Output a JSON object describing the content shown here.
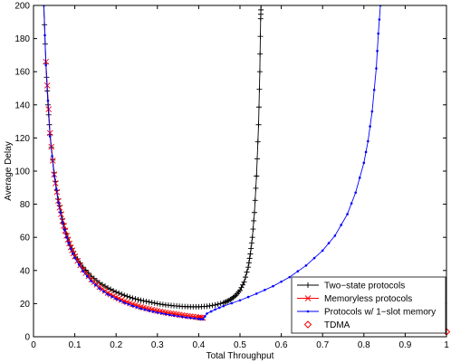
{
  "chart_data": {
    "type": "line",
    "title": "",
    "xlabel": "Total Throughput",
    "ylabel": "Average Delay",
    "xlim": [
      0,
      1
    ],
    "ylim": [
      0,
      200
    ],
    "xticks": [
      "0",
      "0.1",
      "0.2",
      "0.3",
      "0.4",
      "0.5",
      "0.6",
      "0.7",
      "0.8",
      "0.9",
      "1"
    ],
    "yticks": [
      "0",
      "20",
      "40",
      "60",
      "80",
      "100",
      "120",
      "140",
      "160",
      "180",
      "200"
    ],
    "grid": false,
    "legend_position": "bottom-right",
    "series": [
      {
        "name": "Two−state protocols",
        "color": "#000000",
        "marker": "plus",
        "points": [
          [
            0.025,
            200
          ],
          [
            0.03,
            165
          ],
          [
            0.035,
            140
          ],
          [
            0.04,
            122
          ],
          [
            0.05,
            99
          ],
          [
            0.06,
            83
          ],
          [
            0.07,
            71
          ],
          [
            0.08,
            62
          ],
          [
            0.09,
            55
          ],
          [
            0.1,
            49.5
          ],
          [
            0.12,
            42
          ],
          [
            0.14,
            36.5
          ],
          [
            0.16,
            32.5
          ],
          [
            0.18,
            29.5
          ],
          [
            0.2,
            27
          ],
          [
            0.22,
            25
          ],
          [
            0.24,
            23.3
          ],
          [
            0.26,
            22
          ],
          [
            0.28,
            21
          ],
          [
            0.3,
            20
          ],
          [
            0.32,
            19.2
          ],
          [
            0.34,
            18.7
          ],
          [
            0.36,
            18.3
          ],
          [
            0.38,
            18.1
          ],
          [
            0.4,
            18.1
          ],
          [
            0.42,
            18.4
          ],
          [
            0.44,
            19.2
          ],
          [
            0.46,
            20.5
          ],
          [
            0.47,
            21.5
          ],
          [
            0.48,
            23
          ],
          [
            0.49,
            25
          ],
          [
            0.5,
            28
          ],
          [
            0.51,
            33
          ],
          [
            0.52,
            42
          ],
          [
            0.525,
            50
          ],
          [
            0.53,
            60
          ],
          [
            0.535,
            75
          ],
          [
            0.54,
            97
          ],
          [
            0.545,
            128
          ],
          [
            0.548,
            160
          ],
          [
            0.55,
            192
          ],
          [
            0.551,
            200
          ]
        ]
      },
      {
        "name": "Memoryless protocols",
        "color": "#ff0000",
        "marker": "x",
        "points": [
          [
            0.03,
            166
          ],
          [
            0.04,
            123
          ],
          [
            0.05,
            98
          ],
          [
            0.06,
            82
          ],
          [
            0.07,
            70
          ],
          [
            0.08,
            61
          ],
          [
            0.09,
            54
          ],
          [
            0.1,
            48.5
          ],
          [
            0.12,
            40.5
          ],
          [
            0.14,
            34.5
          ],
          [
            0.16,
            30
          ],
          [
            0.18,
            26.5
          ],
          [
            0.2,
            23.8
          ],
          [
            0.22,
            21.5
          ],
          [
            0.24,
            19.6
          ],
          [
            0.26,
            18
          ],
          [
            0.28,
            16.7
          ],
          [
            0.3,
            15.6
          ],
          [
            0.32,
            14.6
          ],
          [
            0.34,
            13.8
          ],
          [
            0.36,
            13
          ],
          [
            0.38,
            12.3
          ],
          [
            0.4,
            11.7
          ],
          [
            0.41,
            11.4
          ]
        ]
      },
      {
        "name": "Protocols w/ 1−slot memory",
        "color": "#0000ff",
        "marker": "dot",
        "points": [
          [
            0.025,
            200
          ],
          [
            0.03,
            164
          ],
          [
            0.04,
            121
          ],
          [
            0.05,
            97
          ],
          [
            0.06,
            81
          ],
          [
            0.07,
            69
          ],
          [
            0.08,
            60
          ],
          [
            0.09,
            53
          ],
          [
            0.1,
            47.5
          ],
          [
            0.12,
            39.5
          ],
          [
            0.14,
            33.5
          ],
          [
            0.16,
            29
          ],
          [
            0.18,
            25.5
          ],
          [
            0.2,
            22.8
          ],
          [
            0.22,
            20.5
          ],
          [
            0.24,
            18.6
          ],
          [
            0.26,
            17
          ],
          [
            0.28,
            15.7
          ],
          [
            0.3,
            14.6
          ],
          [
            0.32,
            13.6
          ],
          [
            0.34,
            12.8
          ],
          [
            0.36,
            12
          ],
          [
            0.38,
            11.4
          ],
          [
            0.4,
            10.8
          ],
          [
            0.41,
            10.5
          ],
          [
            0.42,
            14
          ],
          [
            0.44,
            16.5
          ],
          [
            0.46,
            18.5
          ],
          [
            0.5,
            22
          ],
          [
            0.54,
            26
          ],
          [
            0.58,
            30.5
          ],
          [
            0.62,
            36
          ],
          [
            0.66,
            43
          ],
          [
            0.7,
            52
          ],
          [
            0.73,
            61
          ],
          [
            0.76,
            74
          ],
          [
            0.78,
            87
          ],
          [
            0.8,
            105
          ],
          [
            0.81,
            118
          ],
          [
            0.82,
            136
          ],
          [
            0.83,
            162
          ],
          [
            0.835,
            183
          ],
          [
            0.84,
            200
          ]
        ]
      },
      {
        "name": "TDMA",
        "color": "#ff0000",
        "marker": "diamond",
        "points": [
          [
            1.0,
            3
          ]
        ]
      }
    ]
  }
}
